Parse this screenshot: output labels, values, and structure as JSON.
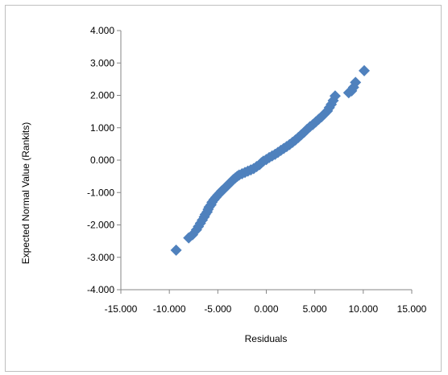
{
  "chart_data": {
    "type": "scatter",
    "title": "",
    "xlabel": "Residuals",
    "ylabel": "Expected Normal Value (Rankits)",
    "xlim": [
      -15,
      15
    ],
    "ylim": [
      -4,
      4
    ],
    "grid": false,
    "legend": "none",
    "marker": "diamond",
    "marker_color": "#4f81bd",
    "xtick_labels": [
      "-15.000",
      "-10.000",
      "-5.000",
      "0.000",
      "5.000",
      "10.000",
      "15.000"
    ],
    "ytick_labels": [
      "4.000",
      "3.000",
      "2.000",
      "1.000",
      "0.000",
      "-1.000",
      "-2.000",
      "-3.000",
      "-4.000"
    ],
    "points": [
      [
        -9.3,
        -2.78
      ],
      [
        -8.0,
        -2.4
      ],
      [
        -7.6,
        -2.3
      ],
      [
        -7.2,
        -2.15
      ],
      [
        -7.0,
        -2.05
      ],
      [
        -6.8,
        -1.95
      ],
      [
        -6.6,
        -1.85
      ],
      [
        -6.4,
        -1.75
      ],
      [
        -6.3,
        -1.68
      ],
      [
        -6.1,
        -1.6
      ],
      [
        -6.0,
        -1.52
      ],
      [
        -5.9,
        -1.45
      ],
      [
        -5.7,
        -1.38
      ],
      [
        -5.6,
        -1.3
      ],
      [
        -5.4,
        -1.22
      ],
      [
        -5.2,
        -1.15
      ],
      [
        -5.0,
        -1.08
      ],
      [
        -4.8,
        -1.02
      ],
      [
        -4.6,
        -0.95
      ],
      [
        -4.4,
        -0.9
      ],
      [
        -4.2,
        -0.84
      ],
      [
        -4.0,
        -0.78
      ],
      [
        -3.8,
        -0.72
      ],
      [
        -3.6,
        -0.66
      ],
      [
        -3.4,
        -0.6
      ],
      [
        -3.2,
        -0.55
      ],
      [
        -3.0,
        -0.5
      ],
      [
        -2.8,
        -0.46
      ],
      [
        -2.5,
        -0.42
      ],
      [
        -2.2,
        -0.38
      ],
      [
        -1.9,
        -0.34
      ],
      [
        -1.6,
        -0.3
      ],
      [
        -1.3,
        -0.26
      ],
      [
        -1.0,
        -0.2
      ],
      [
        -0.7,
        -0.14
      ],
      [
        -0.5,
        -0.08
      ],
      [
        -0.3,
        -0.03
      ],
      [
        0.0,
        0.02
      ],
      [
        0.3,
        0.08
      ],
      [
        0.6,
        0.13
      ],
      [
        0.9,
        0.18
      ],
      [
        1.2,
        0.24
      ],
      [
        1.5,
        0.3
      ],
      [
        1.8,
        0.36
      ],
      [
        2.1,
        0.42
      ],
      [
        2.4,
        0.48
      ],
      [
        2.7,
        0.55
      ],
      [
        3.0,
        0.62
      ],
      [
        3.3,
        0.7
      ],
      [
        3.6,
        0.78
      ],
      [
        3.9,
        0.86
      ],
      [
        4.2,
        0.95
      ],
      [
        4.5,
        1.03
      ],
      [
        4.8,
        1.1
      ],
      [
        5.1,
        1.18
      ],
      [
        5.4,
        1.26
      ],
      [
        5.7,
        1.34
      ],
      [
        6.0,
        1.43
      ],
      [
        6.3,
        1.52
      ],
      [
        6.5,
        1.62
      ],
      [
        6.7,
        1.72
      ],
      [
        6.9,
        1.84
      ],
      [
        7.1,
        1.98
      ],
      [
        8.5,
        2.08
      ],
      [
        8.8,
        2.14
      ],
      [
        9.0,
        2.25
      ],
      [
        9.2,
        2.4
      ],
      [
        10.1,
        2.76
      ]
    ]
  }
}
